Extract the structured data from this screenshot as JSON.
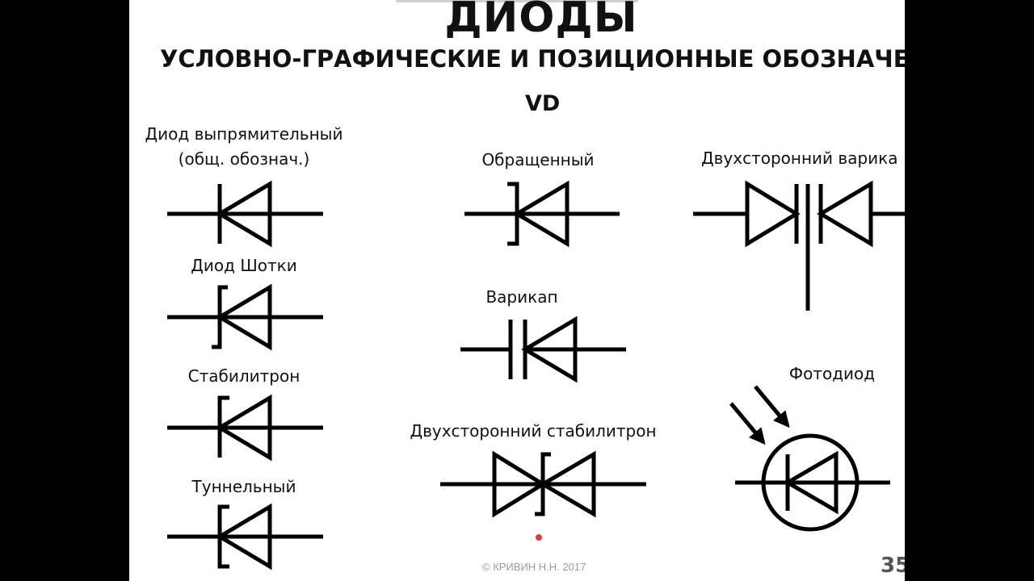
{
  "title": "ДИОДЫ",
  "subtitle": "УСЛОВНО-ГРАФИЧЕСКИЕ И ПОЗИЦИОННЫЕ ОБОЗНАЧЕНИ",
  "designator": "VD",
  "labels": {
    "rectifier_line1": "Диод выпрямительный",
    "rectifier_line2": "(общ. обознач.)",
    "schottky": "Диод Шотки",
    "zener": "Стабилитрон",
    "tunnel": "Туннельный",
    "backward": "Обращенный",
    "varicap": "Варикап",
    "bidirectional_zener": "Двухсторонний стабилитрон",
    "bidirectional_varicap": "Двухсторонний варика",
    "photodiode": "Фотодиод"
  },
  "footer": "© КРИВИН Н.Н. 2017",
  "page_number": "35"
}
